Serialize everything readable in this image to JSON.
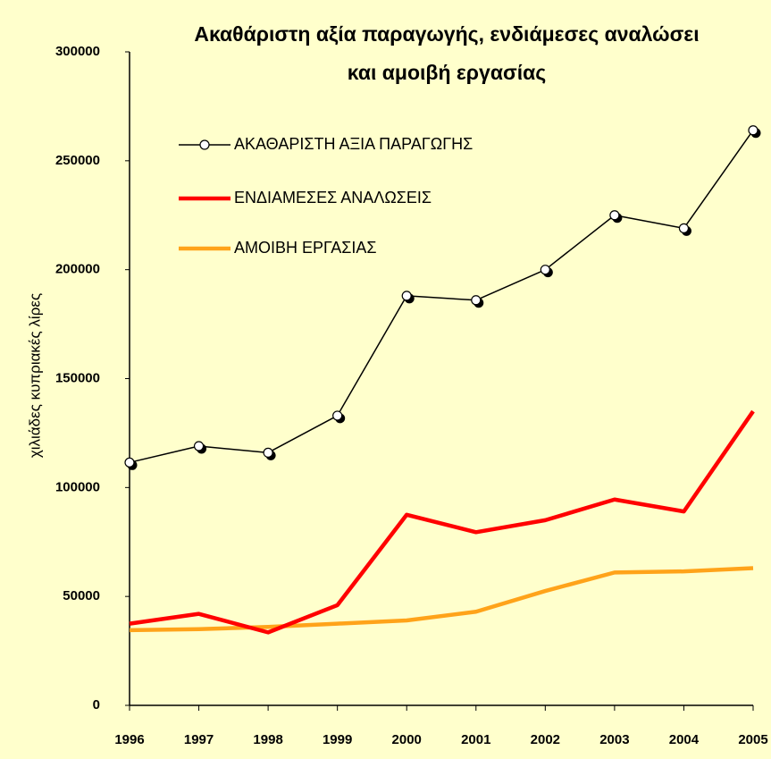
{
  "chart_data": {
    "type": "line",
    "title": [
      "Ακαθάριστη αξία παραγωγής, ενδιάμεσες αναλώσει",
      "και αμοιβή εργασίας"
    ],
    "y_label": "χιλιάδες κυπριακές λίρες",
    "categories": [
      "1996",
      "1997",
      "1998",
      "1999",
      "2000",
      "2001",
      "2002",
      "2003",
      "2004",
      "2005"
    ],
    "series": [
      {
        "name": "ΑΚΑΘΑΡΙΣΤΗ ΑΞΙΑ ΠΑΡΑΓΩΓΗΣ",
        "color": "#000000",
        "markers": true,
        "values": [
          111500,
          119000,
          116000,
          133000,
          188000,
          186000,
          200000,
          225000,
          219000,
          264000
        ]
      },
      {
        "name": "ΕΝΔΙΑΜΕΣΕΣ ΑΝΑΛΩΣΕΙΣ",
        "color": "#ff0000",
        "markers": false,
        "values": [
          37500,
          42000,
          33500,
          46000,
          87500,
          79500,
          85000,
          94500,
          89000,
          135000
        ]
      },
      {
        "name": "ΑΜΟΙΒΗ ΕΡΓΑΣΙΑΣ",
        "color": "#ffa31a",
        "markers": false,
        "values": [
          34500,
          35000,
          36000,
          37500,
          39000,
          43000,
          52500,
          61000,
          61500,
          63000
        ]
      }
    ],
    "ylim": [
      0,
      300000
    ],
    "yticks": [
      0,
      50000,
      100000,
      150000,
      200000,
      250000,
      300000
    ]
  }
}
